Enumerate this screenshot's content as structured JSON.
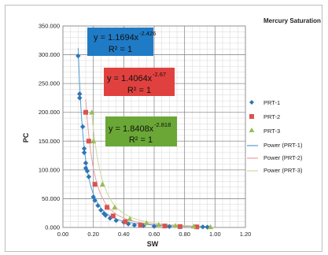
{
  "chart_data": {
    "type": "scatter",
    "title": "Mercury Saturation",
    "xlabel": "SW",
    "ylabel": "PC",
    "xlim": [
      0,
      1.2
    ],
    "ylim": [
      0,
      350
    ],
    "xticks": [
      "0.00",
      "0.20",
      "0.40",
      "0.60",
      "0.80",
      "1.00",
      "1.20"
    ],
    "yticks": [
      "0.000",
      "50.000",
      "100.000",
      "150.000",
      "200.000",
      "250.000",
      "300.000",
      "350.000"
    ],
    "grid": true,
    "legend_position": "right",
    "series": [
      {
        "name": "PRT-1",
        "marker": "diamond",
        "color": "#2e75b6",
        "x": [
          0.1,
          0.11,
          0.11,
          0.13,
          0.14,
          0.14,
          0.15,
          0.15,
          0.16,
          0.17,
          0.2,
          0.21,
          0.23,
          0.25,
          0.27,
          0.28,
          0.31,
          0.35,
          0.4,
          0.43,
          0.47,
          0.53,
          0.6,
          0.7,
          0.92,
          0.95
        ],
        "y": [
          298,
          232,
          225,
          175,
          137,
          130,
          112,
          103,
          98,
          88,
          53,
          47,
          38,
          30,
          24,
          21,
          16,
          12,
          9,
          6,
          4,
          3,
          2,
          1.5,
          1,
          0.5
        ]
      },
      {
        "name": "PRT-2",
        "marker": "square",
        "color": "#d9534f",
        "x": [
          0.15,
          0.17,
          0.21,
          0.29,
          0.33,
          0.41,
          0.51,
          0.67,
          0.77,
          0.88
        ],
        "y": [
          200,
          150,
          75,
          35,
          20,
          10,
          4,
          2.5,
          1.5,
          1
        ]
      },
      {
        "name": "PRT-3",
        "marker": "triangle",
        "color": "#9bbb59",
        "x": [
          0.19,
          0.2,
          0.26,
          0.34,
          0.44,
          0.55,
          0.63,
          0.74,
          0.86,
          0.97
        ],
        "y": [
          200,
          150,
          75,
          35,
          15,
          8,
          5,
          3,
          2,
          1
        ]
      }
    ],
    "trendlines": [
      {
        "name": "Power (PRT-1)",
        "color": "#4f9fd6",
        "a": 1.1694,
        "b": -2.426
      },
      {
        "name": "Power (PRT-2)",
        "color": "#e8a0a0",
        "a": 1.4064,
        "b": -2.67
      },
      {
        "name": "Power (PRT-3)",
        "color": "#c7d9a0",
        "a": 1.8408,
        "b": -2.818
      }
    ],
    "annotations": [
      {
        "id": "eq1",
        "coef": "y = 1.1694x",
        "exp": "-2.426",
        "r2": "R² = 1",
        "bg": "#1f7bc6"
      },
      {
        "id": "eq2",
        "coef": "y = 1.4064x",
        "exp": "-2.67",
        "r2": "R² = 1",
        "bg": "#e0413f"
      },
      {
        "id": "eq3",
        "coef": "y = 1.8408x",
        "exp": "-2.818",
        "r2": "R² = 1",
        "bg": "#6aa736"
      }
    ]
  }
}
